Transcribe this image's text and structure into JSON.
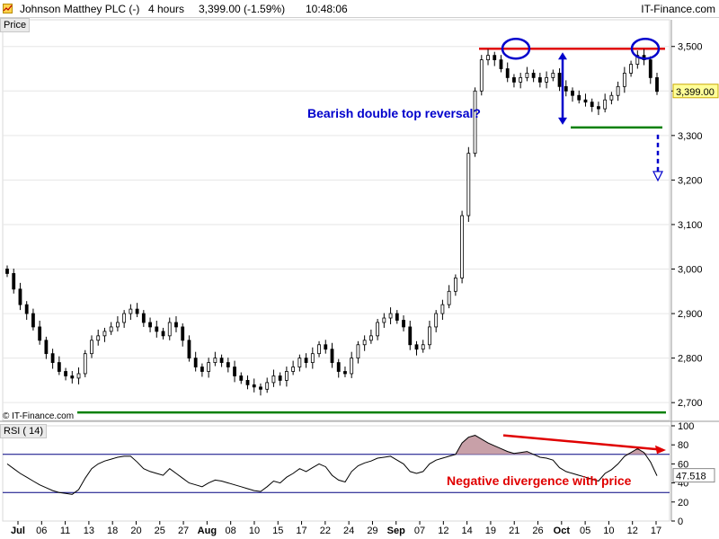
{
  "header": {
    "symbol": "Johnson Matthey PLC (-)",
    "interval": "4 hours",
    "quote": "3,399.00 (-1.59%)",
    "time": "10:48:06",
    "brand": "IT-Finance.com"
  },
  "panels": {
    "price_label": "Price",
    "rsi_label": "RSI ( 14)",
    "copyright": "© IT-Finance.com"
  },
  "annotations": {
    "double_top": "Bearish double top reversal?",
    "divergence": "Negative divergence with price"
  },
  "colors": {
    "up_candle": "#ffffff",
    "down_candle": "#000000",
    "candle_outline": "#000000",
    "resistance": "#e00000",
    "support": "#008000",
    "circle": "#0000cc",
    "arrow": "#0000cc",
    "annotation_blue": "#0000cc",
    "annotation_red": "#e00000",
    "rsi_fill": "#c8a0a8",
    "last_price_bg": "#ffff99"
  },
  "chart_data": [
    {
      "type": "candlestick",
      "title": "Price",
      "ylim": [
        2660,
        3560
      ],
      "y_ticks": [
        2700,
        2800,
        2900,
        3000,
        3100,
        3200,
        3300,
        3400,
        3500
      ],
      "y_tick_labels": [
        "2,700",
        "2,800",
        "2,900",
        "3,000",
        "3,100",
        "3,200",
        "3,300",
        "3,400",
        "3,500"
      ],
      "last_price": 3399,
      "last_price_label": "3,399.00",
      "x_labels": [
        "Jul",
        "06",
        "11",
        "13",
        "18",
        "20",
        "25",
        "27",
        "Aug",
        "08",
        "10",
        "15",
        "17",
        "22",
        "24",
        "29",
        "Sep",
        "07",
        "12",
        "14",
        "19",
        "21",
        "26",
        "Oct",
        "05",
        "10",
        "12",
        "17"
      ],
      "close": [
        2990,
        2955,
        2920,
        2900,
        2870,
        2840,
        2810,
        2790,
        2770,
        2760,
        2755,
        2765,
        2810,
        2840,
        2850,
        2860,
        2870,
        2880,
        2900,
        2910,
        2900,
        2880,
        2870,
        2860,
        2850,
        2880,
        2870,
        2840,
        2800,
        2780,
        2770,
        2790,
        2800,
        2790,
        2780,
        2760,
        2750,
        2740,
        2735,
        2730,
        2745,
        2760,
        2750,
        2770,
        2780,
        2800,
        2790,
        2810,
        2830,
        2820,
        2790,
        2770,
        2765,
        2800,
        2830,
        2840,
        2850,
        2880,
        2890,
        2900,
        2885,
        2870,
        2830,
        2820,
        2830,
        2870,
        2900,
        2920,
        2950,
        2980,
        3120,
        3260,
        3400,
        3470,
        3480,
        3470,
        3450,
        3430,
        3420,
        3430,
        3440,
        3430,
        3420,
        3430,
        3440,
        3410,
        3400,
        3390,
        3380,
        3375,
        3365,
        3360,
        3380,
        3390,
        3410,
        3440,
        3460,
        3480,
        3470,
        3430,
        3399
      ],
      "resistance": 3495,
      "support_neckline": 3318,
      "support_long": 2678,
      "projection_target": 3205
    },
    {
      "type": "line",
      "title": "RSI ( 14)",
      "ylim": [
        0,
        100
      ],
      "y_ticks": [
        0,
        20,
        40,
        60,
        80,
        100
      ],
      "y_tick_labels": [
        "0",
        "20",
        "40",
        "60",
        "80",
        "100"
      ],
      "reference_lines": [
        70,
        30
      ],
      "last_value": 47.518,
      "last_value_label": "47.518",
      "values": [
        60,
        55,
        50,
        46,
        42,
        38,
        35,
        32,
        30,
        29,
        28,
        33,
        45,
        55,
        60,
        63,
        65,
        67,
        68,
        68,
        62,
        55,
        52,
        50,
        48,
        55,
        50,
        45,
        40,
        38,
        36,
        40,
        43,
        42,
        40,
        38,
        36,
        34,
        32,
        31,
        36,
        42,
        40,
        46,
        50,
        55,
        52,
        56,
        60,
        57,
        48,
        43,
        41,
        52,
        58,
        61,
        63,
        66,
        67,
        68,
        64,
        60,
        52,
        50,
        52,
        60,
        64,
        66,
        68,
        70,
        82,
        88,
        90,
        86,
        82,
        79,
        76,
        73,
        71,
        72,
        73,
        70,
        67,
        66,
        64,
        56,
        52,
        50,
        48,
        46,
        44,
        42,
        50,
        54,
        60,
        68,
        72,
        76,
        72,
        62,
        47.5
      ]
    }
  ]
}
